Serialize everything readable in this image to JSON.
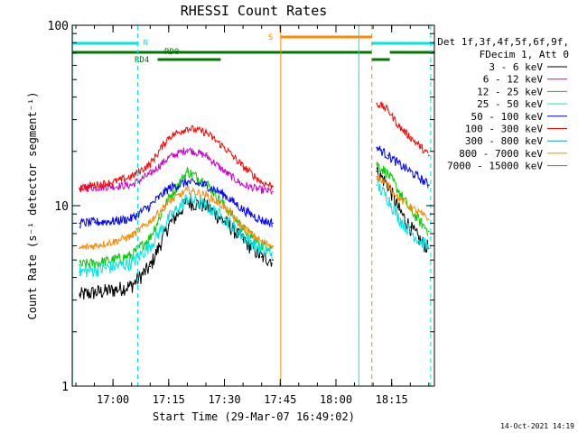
{
  "chart_data": {
    "type": "line",
    "title": "RHESSI Count Rates",
    "xlabel": "Start Time (29-Mar-07 16:49:02)",
    "ylabel": "Count Rate (s⁻¹ detector segment⁻¹)",
    "yscale": "log",
    "ylim": [
      1,
      100
    ],
    "xlim": [
      "16:49:02",
      "18:26:30"
    ],
    "x_ticks": [
      "17:00",
      "17:15",
      "17:30",
      "17:45",
      "18:00",
      "18:15"
    ],
    "y_tick_labels": [
      "1",
      "10",
      "100"
    ],
    "grid": false,
    "legend_position": "right",
    "legend_header": [
      "Det 1f,3f,4f,5f,6f,9f,",
      "FDecim 1, Att 0"
    ],
    "date_stamp": "14-Oct-2021 14:19",
    "series": [
      {
        "name": "3 - 6 keV",
        "color": "#000000",
        "x": [
          "16:51",
          "16:55",
          "17:00",
          "17:05",
          "17:10",
          "17:15",
          "17:20",
          "17:25",
          "17:30",
          "17:35",
          "17:40",
          "17:43",
          "17:47",
          "18:11",
          "18:14",
          "18:17",
          "18:20",
          "18:23",
          "18:25"
        ],
        "values": [
          3.2,
          3.3,
          3.4,
          3.6,
          4.6,
          7.8,
          10.5,
          10,
          8.2,
          6.5,
          5.2,
          5,
          null,
          15.5,
          13,
          9.5,
          7.6,
          6.3,
          5.8
        ]
      },
      {
        "name": "6 - 12 keV",
        "color": "#cc00cc",
        "x": [
          "16:51",
          "16:55",
          "17:00",
          "17:05",
          "17:10",
          "17:15",
          "17:20",
          "17:25",
          "17:30",
          "17:35",
          "17:40",
          "17:43",
          "17:47",
          "18:11",
          "18:14",
          "18:17",
          "18:20",
          "18:23",
          "18:25"
        ],
        "values": [
          12.5,
          12.6,
          12.8,
          13,
          15,
          18.5,
          20.5,
          19,
          15.5,
          13,
          12.2,
          12,
          null,
          null,
          null,
          null,
          null,
          null,
          null
        ]
      },
      {
        "name": "12 - 25 keV",
        "color": "#00cc00",
        "x": [
          "16:51",
          "16:55",
          "17:00",
          "17:05",
          "17:10",
          "17:15",
          "17:20",
          "17:25",
          "17:30",
          "17:35",
          "17:40",
          "17:43",
          "17:47",
          "18:11",
          "18:14",
          "18:17",
          "18:20",
          "18:23",
          "18:25"
        ],
        "values": [
          4.7,
          4.8,
          5,
          5.3,
          6.7,
          11,
          15.5,
          13.5,
          10,
          7.5,
          6,
          5.9,
          null,
          17,
          15,
          12,
          9.5,
          8,
          7.2
        ]
      },
      {
        "name": "25 - 50 keV",
        "color": "#00e5e5",
        "x": [
          "16:51",
          "16:55",
          "17:00",
          "17:05",
          "17:10",
          "17:15",
          "17:20",
          "17:25",
          "17:30",
          "17:35",
          "17:40",
          "17:43",
          "17:47",
          "18:11",
          "18:14",
          "18:17",
          "18:20",
          "18:23",
          "18:25"
        ],
        "values": [
          4.3,
          4.4,
          4.6,
          4.8,
          6,
          8.5,
          11,
          10,
          8.5,
          6.8,
          5.7,
          5.5,
          null,
          13,
          11,
          8.5,
          7.2,
          6.3,
          5.8
        ]
      },
      {
        "name": "50 - 100 keV",
        "color": "#0000ff",
        "x": [
          "16:51",
          "16:55",
          "17:00",
          "17:05",
          "17:10",
          "17:15",
          "17:20",
          "17:25",
          "17:30",
          "17:35",
          "17:40",
          "17:43",
          "17:47",
          "18:11",
          "18:14",
          "18:17",
          "18:20",
          "18:23",
          "18:25"
        ],
        "values": [
          8,
          8.1,
          8.2,
          8.5,
          10,
          12.5,
          13.5,
          13,
          11.5,
          9.5,
          8.3,
          8,
          null,
          21,
          19,
          17,
          15.5,
          14,
          13
        ]
      },
      {
        "name": "100 - 300 keV",
        "color": "#ff0000",
        "x": [
          "16:51",
          "16:55",
          "17:00",
          "17:05",
          "17:10",
          "17:15",
          "17:20",
          "17:25",
          "17:30",
          "17:35",
          "17:40",
          "17:43",
          "17:47",
          "18:11",
          "18:14",
          "18:17",
          "18:20",
          "18:23",
          "18:25"
        ],
        "values": [
          12.5,
          13,
          13.5,
          14.5,
          17,
          24,
          27,
          25.5,
          21,
          16.5,
          13.5,
          12.8,
          null,
          37,
          34,
          27.5,
          24,
          21,
          19
        ]
      },
      {
        "name": "300 - 800 keV",
        "color": "#00aaaa",
        "x": [],
        "values": []
      },
      {
        "name": "800 - 7000 keV",
        "color": "#ff8800",
        "x": [
          "16:51",
          "16:55",
          "17:00",
          "17:05",
          "17:10",
          "17:15",
          "17:20",
          "17:25",
          "17:30",
          "17:35",
          "17:40",
          "17:43",
          "17:47",
          "18:11",
          "18:14",
          "18:17",
          "18:20",
          "18:23",
          "18:25"
        ],
        "values": [
          5.8,
          6,
          6.3,
          6.8,
          8.2,
          10.5,
          12.2,
          11.5,
          9.8,
          7.6,
          6.3,
          6,
          null,
          14.5,
          13,
          11,
          9.8,
          9,
          8.4
        ]
      },
      {
        "name": "7000 - 15000 keV",
        "color": "#997700",
        "x": [],
        "values": []
      }
    ],
    "vertical_markers": [
      {
        "time": "16:49:05",
        "color": "#00e5e5",
        "style": "solid"
      },
      {
        "time": "17:06:40",
        "color": "#00e5e5",
        "style": "dashed"
      },
      {
        "time": "17:45:10",
        "color": "#ff8800",
        "style": "solid"
      },
      {
        "time": "18:06:10",
        "color": "#00e5e5",
        "style": "solid"
      },
      {
        "time": "18:09:40",
        "color": "#ff8800",
        "style": "dashed"
      },
      {
        "time": "18:25:30",
        "color": "#00e5e5",
        "style": "dashed"
      }
    ],
    "flag_bars": [
      {
        "label": "N",
        "color": "#00e5e5",
        "level": 1,
        "segments": [
          [
            "16:49:05",
            "17:06:40"
          ],
          [
            "18:09:40",
            "18:26:30"
          ]
        ]
      },
      {
        "label": "S",
        "color": "#ff8800",
        "level": 0,
        "segments": [
          [
            "17:45:10",
            "18:09:40"
          ]
        ]
      },
      {
        "label": "RD0",
        "color": "#007700",
        "level": 2,
        "segments": [
          [
            "16:49:05",
            "18:09:40"
          ],
          [
            "18:14:30",
            "18:26:30"
          ]
        ]
      },
      {
        "label": "RD4",
        "color": "#007700",
        "level": 3,
        "segments": [
          [
            "17:12:00",
            "17:29:00"
          ],
          [
            "18:09:40",
            "18:14:30"
          ]
        ]
      }
    ]
  }
}
